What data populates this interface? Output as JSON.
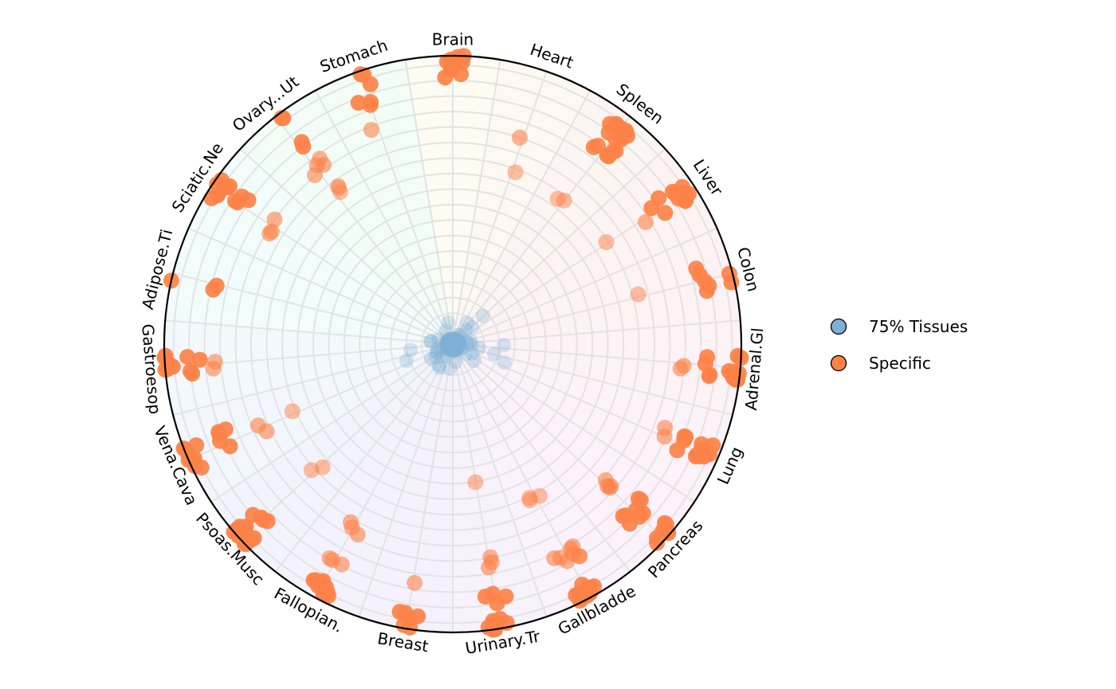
{
  "chart_data": {
    "type": "scatter",
    "subtype": "radial-tissue-specificity",
    "tissues": [
      "Brain",
      "Heart",
      "Spleen",
      "Liver",
      "Colon",
      "Adrenal.Gl",
      "Lung",
      "Pancreas",
      "Gallbladde",
      "Urinary.Tr",
      "Breast",
      "Fallopian.",
      "Psoas.Musc",
      "Vena.Cava",
      "Gastroesop",
      "Adipose.Ti",
      "Sciatic.Ne",
      "Ovary...Ut",
      "Stomach"
    ],
    "radial_range": [
      0,
      1
    ],
    "grid": true,
    "legend": {
      "position": "right",
      "entries": [
        {
          "label": "75% Tissues",
          "color": "#7fb0d6"
        },
        {
          "label": "Specific",
          "color": "#fd8248"
        }
      ]
    },
    "series": [
      {
        "name": "Specific",
        "color": "#fd8248",
        "points": [
          {
            "tissue": "Brain",
            "r": 0.99,
            "count": 8
          },
          {
            "tissue": "Brain",
            "r": 0.93,
            "count": 2
          },
          {
            "tissue": "Brain",
            "r": 0.96,
            "count": 3
          },
          {
            "tissue": "Heart",
            "r": 0.73,
            "count": 1
          },
          {
            "tissue": "Heart",
            "r": 0.61,
            "count": 1
          },
          {
            "tissue": "Spleen",
            "r": 0.93,
            "count": 14
          },
          {
            "tissue": "Spleen",
            "r": 0.86,
            "count": 6
          },
          {
            "tissue": "Spleen",
            "r": 0.63,
            "count": 2
          },
          {
            "tissue": "Liver",
            "r": 0.95,
            "count": 10
          },
          {
            "tissue": "Liver",
            "r": 0.85,
            "count": 3
          },
          {
            "tissue": "Liver",
            "r": 0.77,
            "count": 1
          },
          {
            "tissue": "Liver",
            "r": 0.64,
            "count": 1
          },
          {
            "tissue": "Colon",
            "r": 0.98,
            "count": 2
          },
          {
            "tissue": "Colon",
            "r": 0.9,
            "count": 5
          },
          {
            "tissue": "Colon",
            "r": 0.69,
            "count": 1
          },
          {
            "tissue": "Adrenal.Gl",
            "r": 0.98,
            "count": 10
          },
          {
            "tissue": "Adrenal.Gl",
            "r": 0.9,
            "count": 4
          },
          {
            "tissue": "Adrenal.Gl",
            "r": 0.78,
            "count": 2
          },
          {
            "tissue": "Lung",
            "r": 0.95,
            "count": 8
          },
          {
            "tissue": "Lung",
            "r": 0.88,
            "count": 4
          },
          {
            "tissue": "Lung",
            "r": 0.78,
            "count": 2
          },
          {
            "tissue": "Pancreas",
            "r": 0.98,
            "count": 8
          },
          {
            "tissue": "Pancreas",
            "r": 0.86,
            "count": 8
          },
          {
            "tissue": "Pancreas",
            "r": 0.73,
            "count": 4
          },
          {
            "tissue": "Gallbladde",
            "r": 0.97,
            "count": 12
          },
          {
            "tissue": "Gallbladde",
            "r": 0.84,
            "count": 8
          },
          {
            "tissue": "Gallbladde",
            "r": 0.61,
            "count": 3
          },
          {
            "tissue": "Urinary.Tr",
            "r": 0.99,
            "count": 10
          },
          {
            "tissue": "Urinary.Tr",
            "r": 0.9,
            "count": 4
          },
          {
            "tissue": "Urinary.Tr",
            "r": 0.77,
            "count": 3
          },
          {
            "tissue": "Urinary.Tr",
            "r": 0.51,
            "count": 1
          },
          {
            "tissue": "Breast",
            "r": 0.97,
            "count": 6
          },
          {
            "tissue": "Breast",
            "r": 0.82,
            "count": 1
          },
          {
            "tissue": "Fallopian.",
            "r": 0.96,
            "count": 10
          },
          {
            "tissue": "Fallopian.",
            "r": 0.84,
            "count": 3
          },
          {
            "tissue": "Fallopian.",
            "r": 0.73,
            "count": 3
          },
          {
            "tissue": "Psoas.Musc",
            "r": 0.98,
            "count": 12
          },
          {
            "tissue": "Psoas.Musc",
            "r": 0.9,
            "count": 4
          },
          {
            "tissue": "Psoas.Musc",
            "r": 0.64,
            "count": 2
          },
          {
            "tissue": "Vena.Cava",
            "r": 0.98,
            "count": 8
          },
          {
            "tissue": "Vena.Cava",
            "r": 0.86,
            "count": 5
          },
          {
            "tissue": "Vena.Cava",
            "r": 0.72,
            "count": 2
          },
          {
            "tissue": "Vena.Cava",
            "r": 0.58,
            "count": 1
          },
          {
            "tissue": "Gastroesop",
            "r": 0.99,
            "count": 6
          },
          {
            "tissue": "Gastroesop",
            "r": 0.9,
            "count": 4
          },
          {
            "tissue": "Gastroesop",
            "r": 0.83,
            "count": 2
          },
          {
            "tissue": "Adipose.Ti",
            "r": 1.0,
            "count": 1
          },
          {
            "tissue": "Adipose.Ti",
            "r": 0.85,
            "count": 2
          },
          {
            "tissue": "Sciatic.Ne",
            "r": 0.97,
            "count": 8
          },
          {
            "tissue": "Sciatic.Ne",
            "r": 0.88,
            "count": 4
          },
          {
            "tissue": "Sciatic.Ne",
            "r": 0.76,
            "count": 3
          },
          {
            "tissue": "Ovary...Ut",
            "r": 0.99,
            "count": 2
          },
          {
            "tissue": "Ovary...Ut",
            "r": 0.87,
            "count": 2
          },
          {
            "tissue": "Ovary...Ut",
            "r": 0.78,
            "count": 4
          },
          {
            "tissue": "Ovary...Ut",
            "r": 0.66,
            "count": 3
          },
          {
            "tissue": "Stomach",
            "r": 0.97,
            "count": 3
          },
          {
            "tissue": "Stomach",
            "r": 0.9,
            "count": 3
          },
          {
            "tissue": "Stomach",
            "r": 0.78,
            "count": 1
          }
        ]
      },
      {
        "name": "75% Tissues",
        "color": "#7fb0d6",
        "points": [
          {
            "tissue": "all",
            "r": 0.02,
            "count": 60
          },
          {
            "tissue": "all",
            "r": 0.08,
            "count": 30
          },
          {
            "tissue": "all",
            "r": 0.18,
            "count": 8
          }
        ]
      }
    ]
  }
}
